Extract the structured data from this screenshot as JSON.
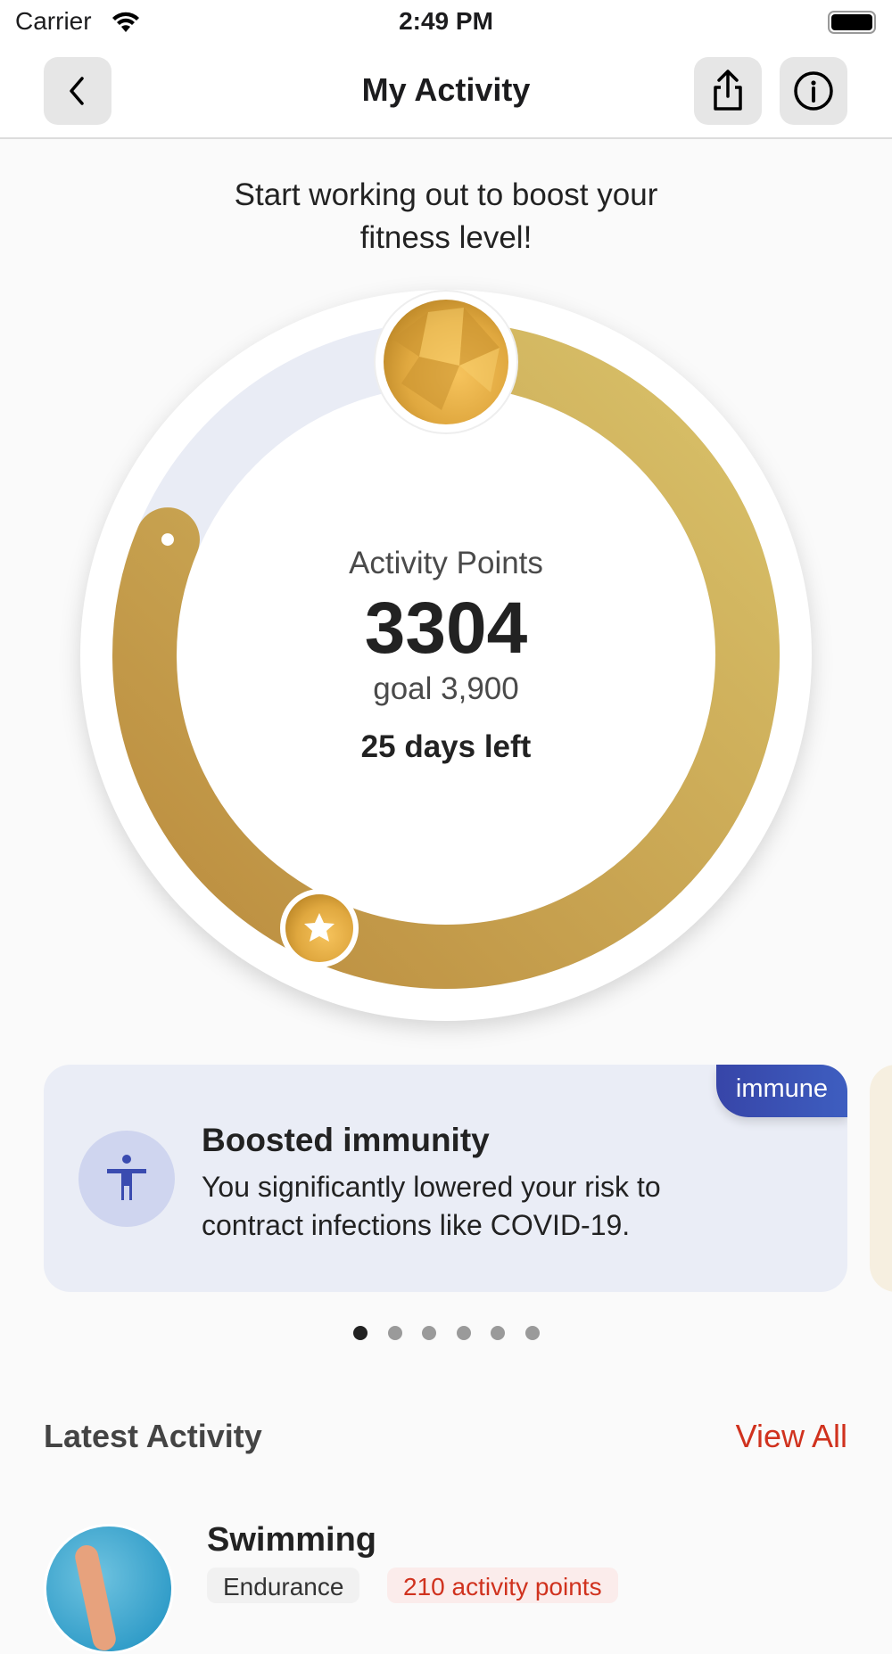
{
  "status_bar": {
    "carrier": "Carrier",
    "time": "2:49 PM"
  },
  "nav": {
    "title": "My Activity",
    "back_icon": "chevron-left-icon",
    "share_icon": "share-icon",
    "info_icon": "info-circle-icon"
  },
  "headline": {
    "line1": "Start working out to boost your",
    "line2": "fitness level!"
  },
  "ring": {
    "label": "Activity Points",
    "points": 3304,
    "points_text": "3304",
    "goal_text": "goal 3,900",
    "goal": 3900,
    "days_left": "25 days left",
    "colors": {
      "track": "#e9ecf5",
      "gold_light": "#d9c26a",
      "gold_dark": "#bb8c3e"
    }
  },
  "insight_card": {
    "tag": "immune",
    "title": "Boosted immunity",
    "body_line1": "You significantly lowered your risk to",
    "body_line2": "contract infections like COVID-19.",
    "icon": "accessibility-person-icon",
    "accent": "#3a4bb0"
  },
  "pager": {
    "count": 6,
    "active": 0
  },
  "latest": {
    "title": "Latest Activity",
    "view_all": "View All",
    "items": [
      {
        "name": "Swimming",
        "category": "Endurance",
        "points": "210 activity points"
      }
    ]
  }
}
